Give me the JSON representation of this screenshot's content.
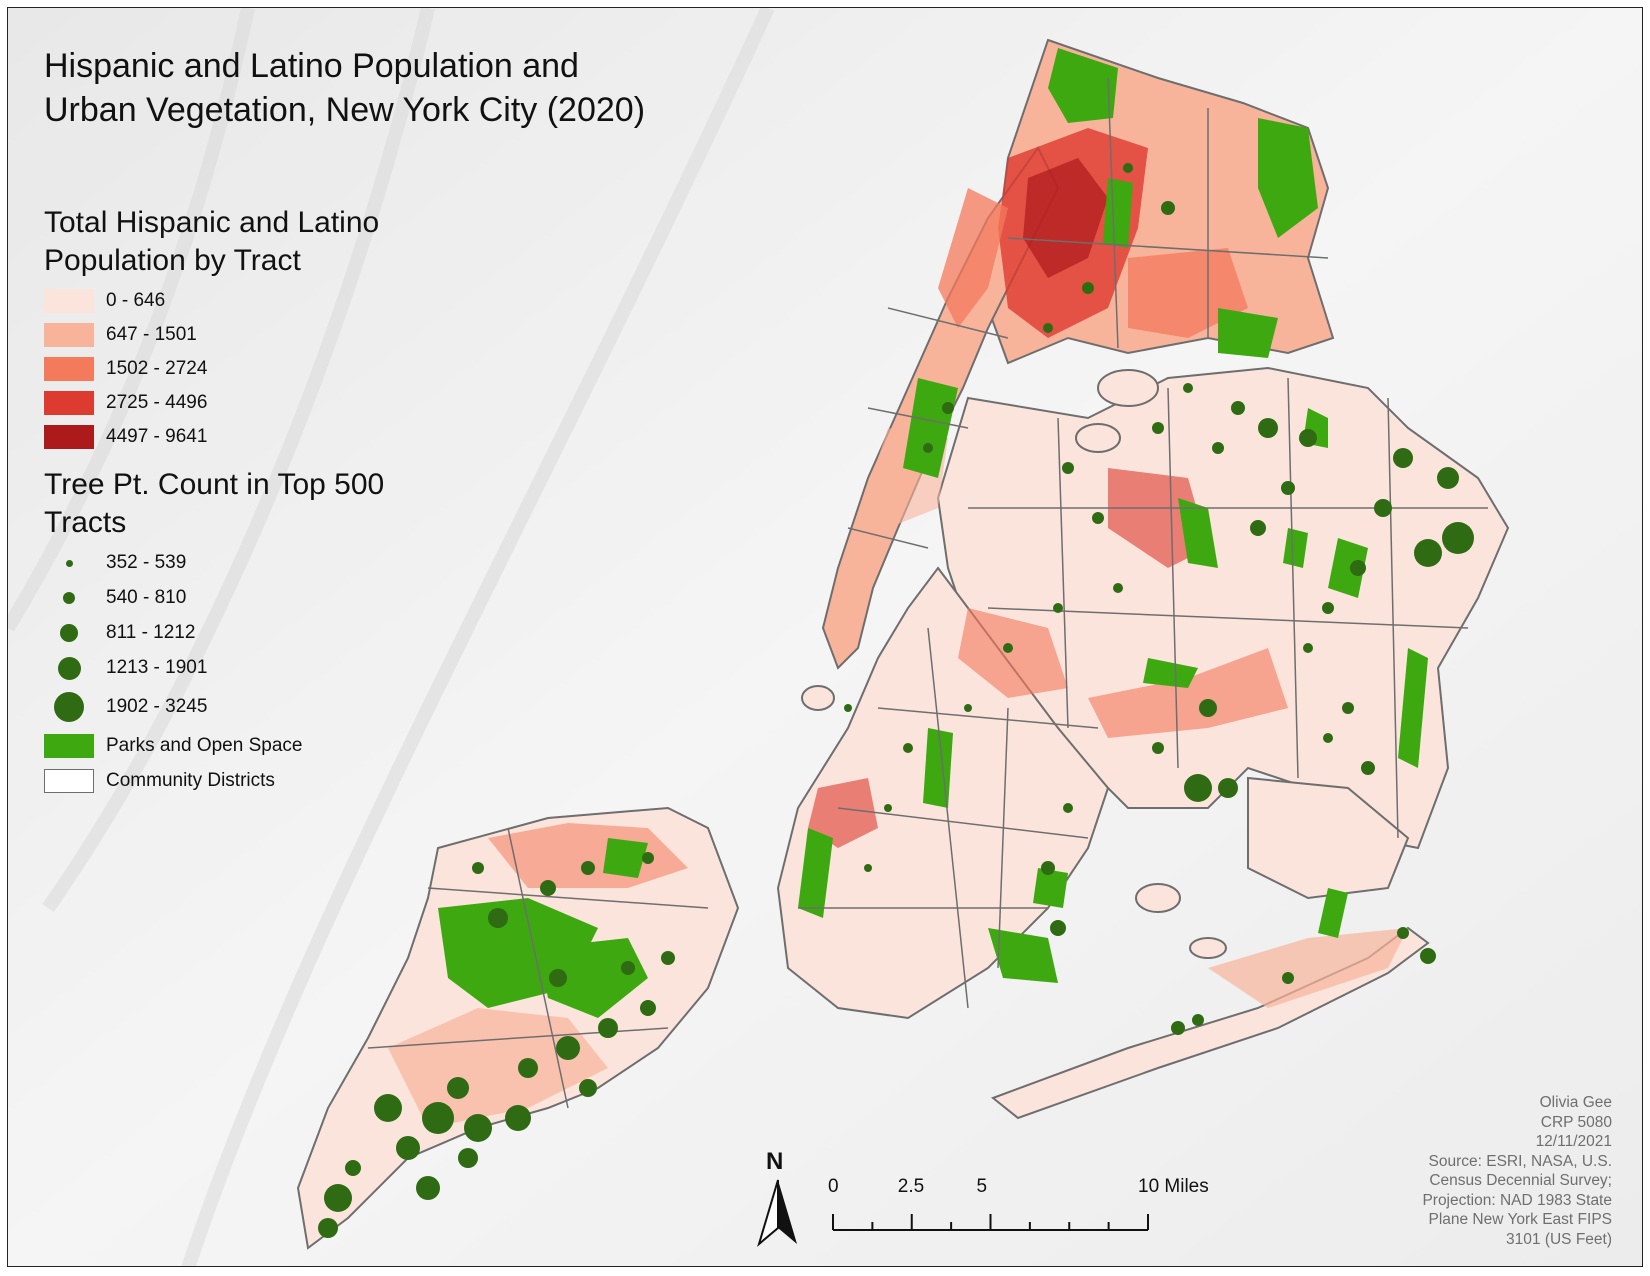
{
  "title": {
    "line1": "Hispanic and Latino Population and",
    "line2": "Urban Vegetation, New York City (2020)"
  },
  "legend": {
    "population": {
      "heading_line1": "Total Hispanic and Latino",
      "heading_line2": "Population by Tract",
      "classes": [
        {
          "label": "0 - 646",
          "color": "#fbe4dc"
        },
        {
          "label": "647 - 1501",
          "color": "#f8b49b"
        },
        {
          "label": "1502 - 2724",
          "color": "#f47a5c"
        },
        {
          "label": "2725 - 4496",
          "color": "#dd3a30"
        },
        {
          "label": "4497 - 9641",
          "color": "#ad1a1c"
        }
      ]
    },
    "trees": {
      "heading_line1": "Tree Pt. Count in Top 500",
      "heading_line2": "Tracts",
      "classes": [
        {
          "label": "352 - 539"
        },
        {
          "label": "540 - 810"
        },
        {
          "label": "811 - 1212"
        },
        {
          "label": "1213 - 1901"
        },
        {
          "label": "1902 - 3245"
        }
      ],
      "dot_color": "#2e6b12"
    },
    "parks": {
      "label": "Parks and Open Space",
      "color": "#3ea811"
    },
    "districts": {
      "label": "Community Districts",
      "color": "#6e6e6e"
    }
  },
  "north_arrow": {
    "label": "N"
  },
  "scale_bar": {
    "ticks": [
      {
        "label": "0",
        "miles": 0
      },
      {
        "label": "2.5",
        "miles": 2.5
      },
      {
        "label": "5",
        "miles": 5
      },
      {
        "label": "10 Miles",
        "miles": 10
      }
    ]
  },
  "credits": [
    "Olivia Gee",
    "CRP 5080",
    "12/11/2021",
    "Source: ESRI, NASA, U.S.",
    "Census Decennial Survey;",
    "Projection: NAD 1983 State",
    "Plane New York East FIPS",
    "3101 (US Feet)"
  ],
  "colors": {
    "land_base": "#fbe4dc",
    "water_background": "#f3f3f3",
    "district_outline": "#6e6e6e"
  }
}
